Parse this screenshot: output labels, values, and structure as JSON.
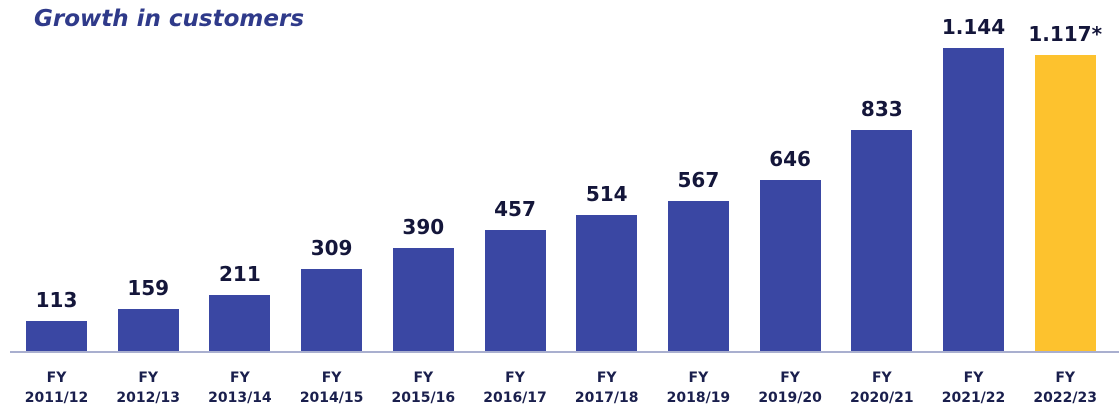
{
  "chart_data": {
    "type": "bar",
    "title": "Growth in customers",
    "categories": [
      "FY 2011/12",
      "FY 2012/13",
      "FY 2013/14",
      "FY 2014/15",
      "FY 2015/16",
      "FY 2016/17",
      "FY 2017/18",
      "FY 2018/19",
      "FY 2019/20",
      "FY 2020/21",
      "FY 2021/22",
      "FY 2022/23"
    ],
    "values": [
      113,
      159,
      211,
      309,
      390,
      457,
      514,
      567,
      646,
      833,
      1144,
      1117
    ],
    "value_labels": [
      "113",
      "159",
      "211",
      "309",
      "390",
      "457",
      "514",
      "567",
      "646",
      "833",
      "1.144",
      "1.117*"
    ],
    "colors": [
      "#3a47a3",
      "#3a47a3",
      "#3a47a3",
      "#3a47a3",
      "#3a47a3",
      "#3a47a3",
      "#3a47a3",
      "#3a47a3",
      "#3a47a3",
      "#3a47a3",
      "#3a47a3",
      "#fdc22e"
    ]
  }
}
